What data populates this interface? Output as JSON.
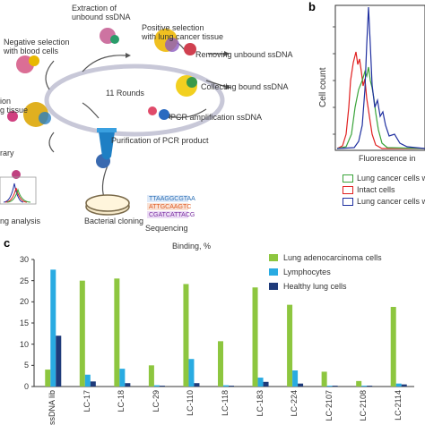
{
  "panel_a": {
    "steps": {
      "extraction": "Extraction of\nunbound ssDNA",
      "negative": "Negative selection\nwith blood cells",
      "positive": "Positive selection\nwith lung cancer tissue",
      "removing": "Removing unbound ssDNA",
      "collecting": "Collecting bound ssDNA",
      "pcr": "PCR amplification ssDNA",
      "purification": "Purification of PCR product",
      "rounds": "11 Rounds",
      "left_partial_1": "ion",
      "left_partial_2": "g tissue",
      "library_partial": "rary",
      "analysis_partial": "ng analysis",
      "cloning": "Bacterial cloning",
      "sequencing": "Sequencing"
    },
    "sequences": [
      "TTAAGGCGTAA",
      "ATTGCAAGTC",
      "CGATCATTACG"
    ],
    "sequence_colors": [
      "#2a6fb5",
      "#e05a20",
      "#7a2fa0"
    ]
  },
  "panel_b": {
    "letter": "b",
    "ylabel": "Cell count",
    "xlabel": "Fluorescence in",
    "legend": [
      {
        "label": "Lung cancer cells wi",
        "color": "#3aa43a"
      },
      {
        "label": "Intact cells",
        "color": "#e02020"
      },
      {
        "label": "Lung cancer cells wi",
        "color": "#2030a0"
      }
    ]
  },
  "chart_data": {
    "type": "bar",
    "letter": "c",
    "title": "Binding, %",
    "categories": [
      "ssDNA lib",
      "LC-17",
      "LC-18",
      "LC-29",
      "LC-110",
      "LC-118",
      "LC-183",
      "LC-224",
      "LC-2107",
      "LC-2108",
      "LC-2114"
    ],
    "series": [
      {
        "name": "Lung adenocarcinoma cells",
        "color": "#8dc63f",
        "values": [
          4,
          25,
          25.5,
          5,
          24.2,
          10.7,
          23.4,
          19.3,
          3.5,
          1.3,
          18.8
        ]
      },
      {
        "name": "Lymphocytes",
        "color": "#29abe2",
        "values": [
          27.6,
          2.8,
          4.2,
          0.3,
          6.5,
          0.3,
          2.1,
          3.8,
          0.2,
          0.2,
          0.7
        ]
      },
      {
        "name": "Healthy lung cells",
        "color": "#1f3b7a",
        "values": [
          12,
          1.2,
          0.8,
          0.2,
          0.8,
          0.2,
          1.1,
          0.7,
          0.2,
          0.2,
          0.5
        ]
      }
    ],
    "yticks": [
      "0",
      "5",
      "10",
      "15",
      "20",
      "25",
      "30"
    ],
    "ylim": [
      0,
      30
    ],
    "grid": false,
    "legend_position": "top-right"
  }
}
